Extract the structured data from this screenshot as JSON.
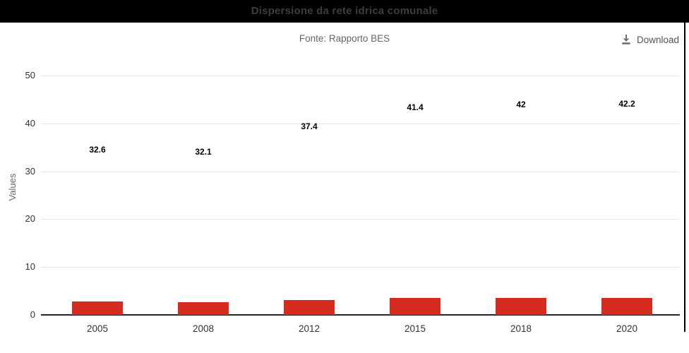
{
  "header": {
    "title": "Dispersione da rete idrica comunale",
    "subtitle": "Fonte: Rapporto BES"
  },
  "toolbar": {
    "download_label": "Download"
  },
  "colors": {
    "titlebar_bg": "#000000",
    "accent_bar": "#d62b1f"
  },
  "chart_data": {
    "type": "bar",
    "title": "Dispersione da rete idrica comunale",
    "subtitle": "Fonte: Rapporto BES",
    "categories": [
      "2005",
      "2008",
      "2012",
      "2015",
      "2018",
      "2020"
    ],
    "values": [
      32.6,
      32.1,
      37.4,
      41.4,
      42,
      42.2
    ],
    "value_labels": [
      "32.6",
      "32.1",
      "37.4",
      "41.4",
      "42",
      "42.2"
    ],
    "xlabel": "",
    "ylabel": "Values",
    "ylim": [
      0,
      50
    ],
    "yticks": [
      0,
      10,
      20,
      30,
      40,
      50
    ],
    "grid": true,
    "legend": "none",
    "bar_color": "#d62b1f",
    "bar_render_fraction": 0.084
  }
}
